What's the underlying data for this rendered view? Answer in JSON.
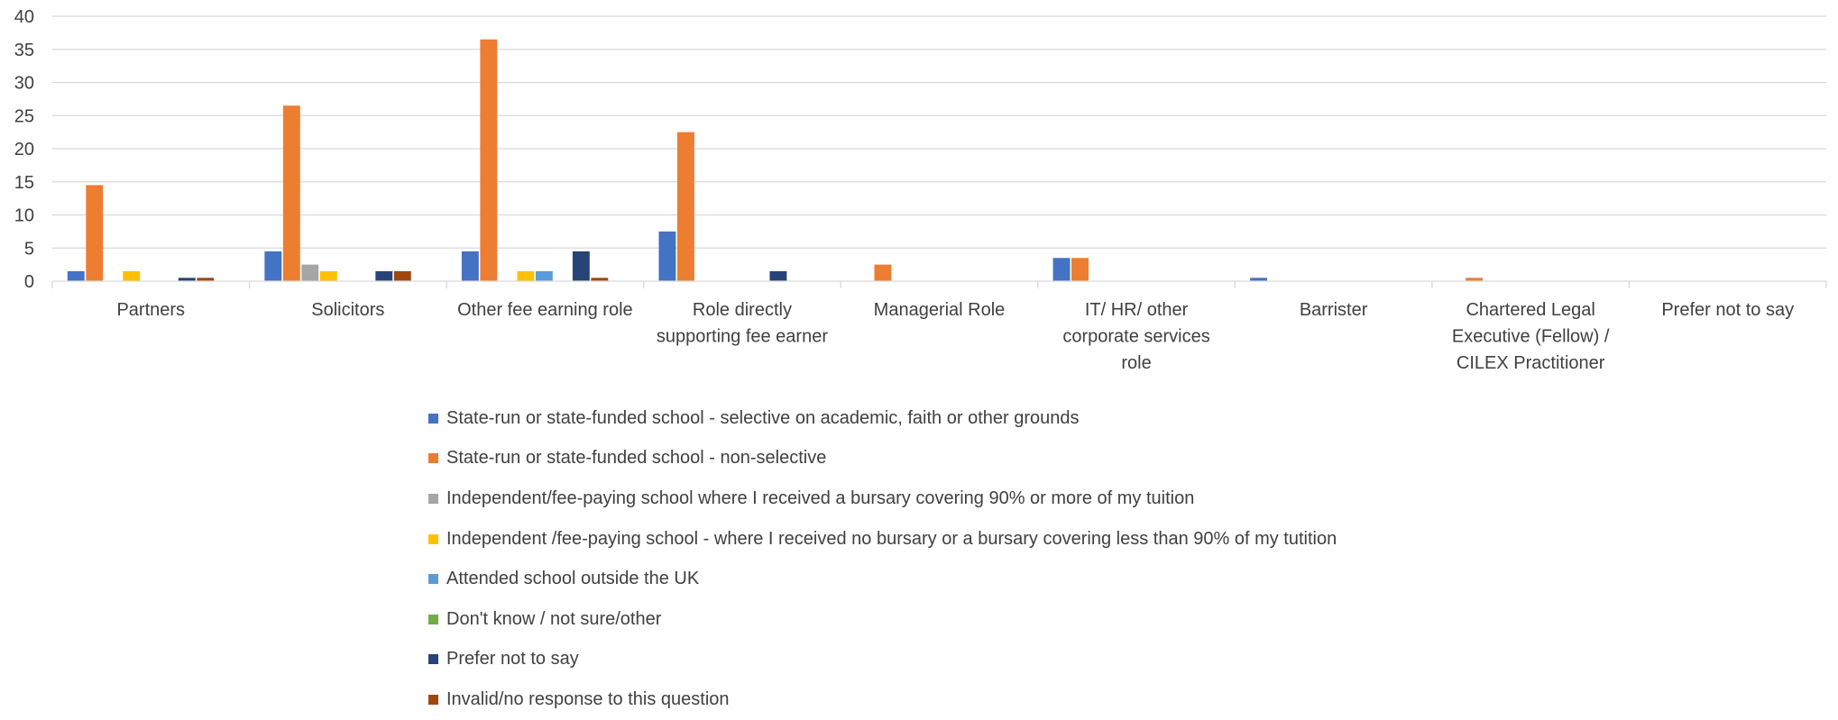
{
  "chart_data": {
    "type": "bar",
    "categories": [
      "Partners",
      "Solicitors",
      "Other fee earning role",
      "Role directly supporting fee earner",
      "Managerial Role",
      "IT/ HR/ other corporate services role",
      "Barrister",
      "Chartered Legal Executive (Fellow) / CILEX Practitioner",
      "Prefer not to say"
    ],
    "category_label_lines": [
      [
        "Partners"
      ],
      [
        "Solicitors"
      ],
      [
        "Other fee earning role"
      ],
      [
        "Role directly",
        "supporting fee earner"
      ],
      [
        "Managerial Role"
      ],
      [
        "IT/ HR/ other",
        "corporate services",
        "role"
      ],
      [
        "Barrister"
      ],
      [
        "Chartered Legal",
        "Executive (Fellow) /",
        "CILEX Practitioner"
      ],
      [
        "Prefer not to say"
      ]
    ],
    "series": [
      {
        "name": "State-run or state-funded school - selective on academic, faith or other grounds",
        "color": "#4472C4",
        "values": [
          1.5,
          4.5,
          4.5,
          7.5,
          0,
          3.5,
          0.5,
          0,
          0
        ]
      },
      {
        "name": "State-run or state-funded school - non-selective",
        "color": "#ED7D31",
        "values": [
          14.5,
          26.5,
          36.5,
          22.5,
          2.5,
          3.5,
          0,
          0.5,
          0
        ]
      },
      {
        "name": "Independent/fee-paying school where I received a bursary covering 90% or more of my tuition",
        "color": "#A5A5A5",
        "values": [
          0,
          2.5,
          0,
          0,
          0,
          0,
          0,
          0,
          0
        ]
      },
      {
        "name": "Independent /fee-paying school - where I received no bursary or a bursary covering less than 90% of my tutition",
        "color": "#FFC000",
        "values": [
          1.5,
          1.5,
          1.5,
          0,
          0,
          0,
          0,
          0,
          0
        ]
      },
      {
        "name": "Attended school outside the UK",
        "color": "#5B9BD5",
        "values": [
          0,
          0,
          1.5,
          0,
          0,
          0,
          0,
          0,
          0
        ]
      },
      {
        "name": "Don't know / not sure/other",
        "color": "#70AD47",
        "values": [
          0,
          0,
          0,
          0,
          0,
          0,
          0,
          0,
          0
        ]
      },
      {
        "name": "Prefer not to say",
        "color": "#264478",
        "values": [
          0.5,
          1.5,
          4.5,
          1.5,
          0,
          0,
          0,
          0,
          0
        ]
      },
      {
        "name": "Invalid/no response to this question",
        "color": "#9E480E",
        "values": [
          0.5,
          1.5,
          0.5,
          0,
          0,
          0,
          0,
          0,
          0
        ]
      }
    ],
    "yticks": [
      "0",
      "5",
      "10",
      "15",
      "20",
      "25",
      "30",
      "35",
      "40"
    ],
    "ylim": [
      0,
      40
    ],
    "grid": true,
    "legend_position": "bottom",
    "title": "",
    "xlabel": "",
    "ylabel": ""
  }
}
